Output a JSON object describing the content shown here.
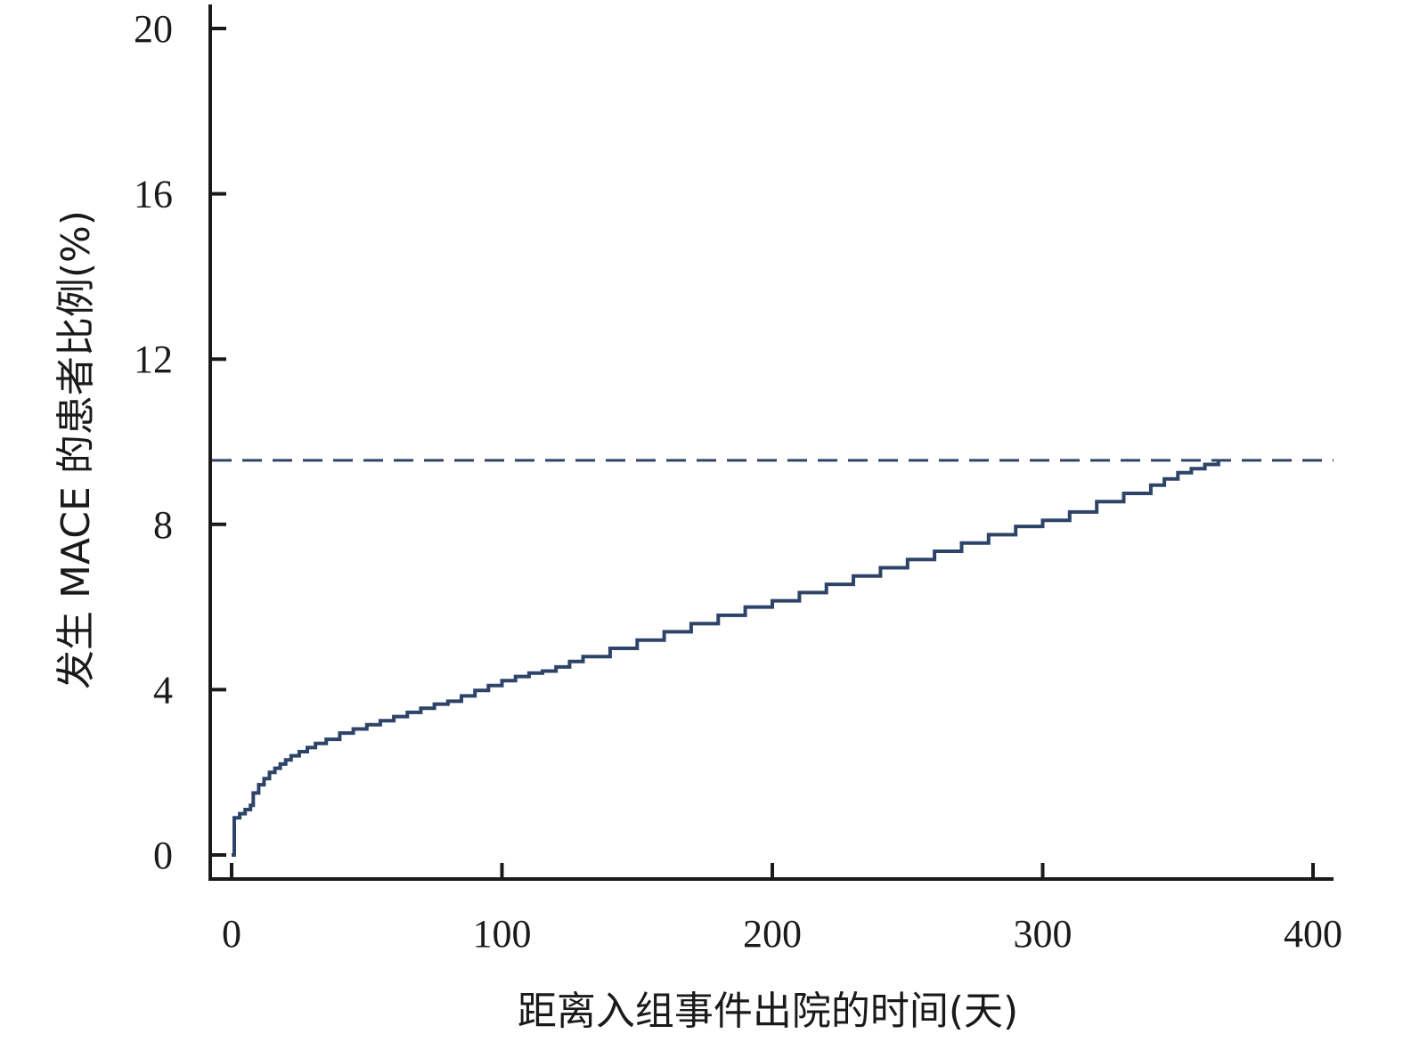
{
  "chart_data": {
    "type": "line",
    "title": "",
    "xlabel": "距离入组事件出院的时间(天)",
    "ylabel": "发生 MACE 的患者比例(%)",
    "xlim": [
      0,
      400
    ],
    "ylim": [
      0,
      20
    ],
    "x_ticks": [
      0,
      100,
      200,
      300,
      400
    ],
    "x_tick_labels": [
      "0",
      "100",
      "200",
      "300",
      "400"
    ],
    "y_ticks": [
      0,
      4,
      8,
      12,
      16,
      20
    ],
    "y_tick_labels": [
      "0",
      "4",
      "8",
      "12",
      "16",
      "20"
    ],
    "grid": false,
    "legend": "none",
    "series": [
      {
        "color": "#2d4468",
        "step": true,
        "x": [
          0,
          1,
          1,
          3,
          5,
          7,
          8,
          10,
          12,
          14,
          16,
          18,
          20,
          22,
          25,
          28,
          31,
          35,
          40,
          45,
          50,
          55,
          60,
          65,
          70,
          75,
          80,
          85,
          90,
          95,
          100,
          105,
          110,
          115,
          120,
          125,
          130,
          140,
          150,
          160,
          170,
          180,
          190,
          200,
          210,
          220,
          230,
          240,
          250,
          260,
          270,
          280,
          290,
          300,
          310,
          320,
          330,
          340,
          345,
          350,
          355,
          360,
          365
        ],
        "y": [
          0,
          0,
          0.9,
          1.0,
          1.1,
          1.2,
          1.5,
          1.7,
          1.85,
          2.0,
          2.1,
          2.2,
          2.3,
          2.4,
          2.5,
          2.6,
          2.7,
          2.8,
          2.95,
          3.05,
          3.15,
          3.25,
          3.35,
          3.45,
          3.55,
          3.65,
          3.72,
          3.85,
          3.98,
          4.1,
          4.22,
          4.32,
          4.4,
          4.45,
          4.55,
          4.68,
          4.8,
          5.0,
          5.2,
          5.4,
          5.6,
          5.8,
          6.0,
          6.15,
          6.35,
          6.55,
          6.75,
          6.95,
          7.15,
          7.35,
          7.55,
          7.75,
          7.95,
          8.1,
          8.3,
          8.55,
          8.75,
          8.95,
          9.1,
          9.25,
          9.35,
          9.45,
          9.55
        ]
      }
    ],
    "reference_lines": [
      {
        "orientation": "horizontal",
        "y": 9.55,
        "style": "dashed",
        "color": "#2d4468"
      }
    ]
  }
}
